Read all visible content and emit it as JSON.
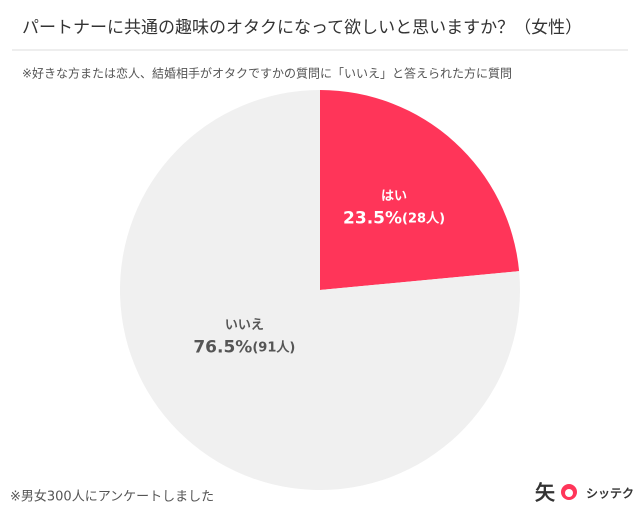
{
  "chart_data": {
    "type": "pie",
    "title": "パートナーに共通の趣味のオタクになって欲しいと思いますか？（女性）",
    "subtitle": "※好きな方または恋人、結婚相手がオタクですかの質問に「いいえ」と答えられた方に質問",
    "categories": [
      "はい",
      "いいえ"
    ],
    "values": [
      23.5,
      76.5
    ],
    "value_labels": [
      "23.5%",
      "76.5%"
    ],
    "count_labels": [
      "(28人)",
      "(91人)"
    ],
    "colors": [
      "#ff3559",
      "#f0f0f0"
    ],
    "label_colors": [
      "#ffffff",
      "#555555"
    ],
    "footnote": "※男女300人にアンケートしました",
    "logo": "シッテク"
  }
}
